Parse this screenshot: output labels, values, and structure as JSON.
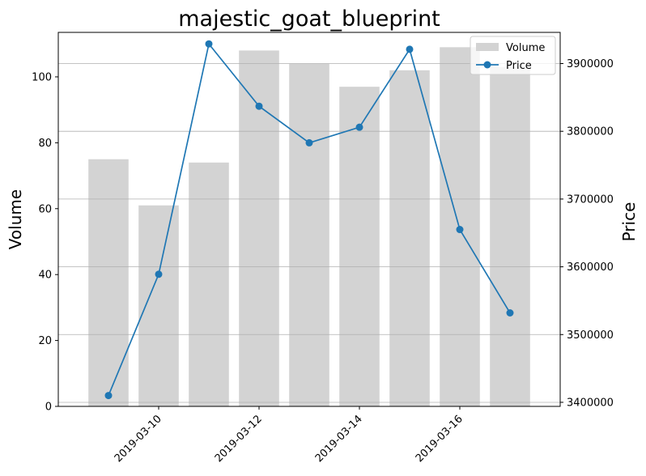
{
  "chart_data": {
    "type": "bar",
    "title": "majestic_goat_blueprint",
    "xlabel": "",
    "ylabel": "Volume",
    "y2label": "Price",
    "categories": [
      "2019-03-09",
      "2019-03-10",
      "2019-03-11",
      "2019-03-12",
      "2019-03-13",
      "2019-03-14",
      "2019-03-15",
      "2019-03-16",
      "2019-03-17"
    ],
    "x_ticks": [
      "2019-03-10",
      "2019-03-12",
      "2019-03-14",
      "2019-03-16"
    ],
    "x_range": [
      "2019-03-08",
      "2019-03-18"
    ],
    "ylim": [
      0,
      113.5
    ],
    "y_ticks": [
      0,
      20,
      40,
      60,
      80,
      100
    ],
    "y2lim": [
      3394000,
      3946000
    ],
    "y2_ticks": [
      3400000,
      3500000,
      3600000,
      3700000,
      3800000,
      3900000
    ],
    "series": [
      {
        "name": "Volume",
        "type": "bar",
        "axis": "left",
        "color": "#d3d3d3",
        "values": [
          75,
          61,
          74,
          108,
          104,
          97,
          102,
          109,
          103
        ]
      },
      {
        "name": "Price",
        "type": "line",
        "axis": "right",
        "color": "#1f77b4",
        "marker": "circle",
        "values": [
          3410000,
          3589000,
          3929000,
          3837000,
          3783000,
          3806000,
          3921000,
          3655000,
          3532000
        ]
      }
    ],
    "grid": "horizontal lines at right-axis ticks",
    "legend": "top-right"
  }
}
